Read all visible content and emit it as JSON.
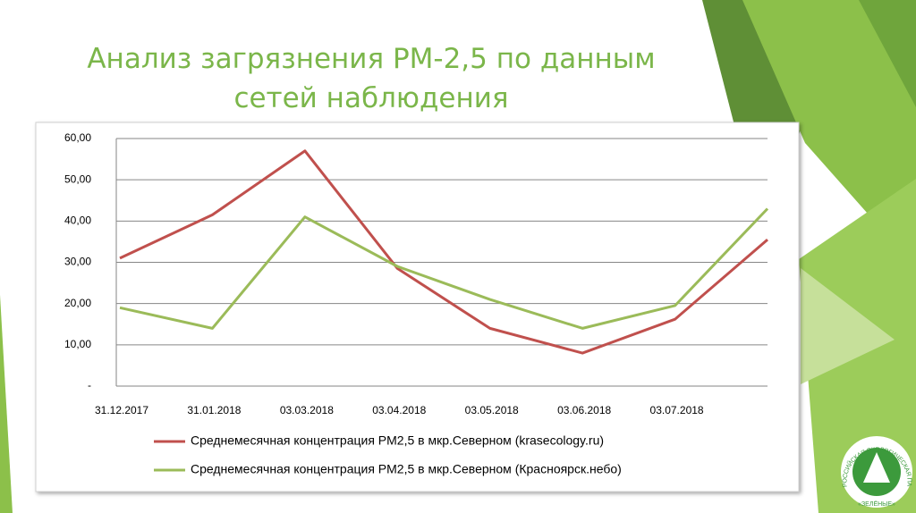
{
  "chart_data": {
    "type": "line",
    "title": "Анализ загрязнения PM-2,5 по данным сетей наблюдения",
    "categories": [
      "31.12.2017",
      "31.01.2018",
      "03.03.2018",
      "03.04.2018",
      "03.05.2018",
      "03.06.2018",
      "03.07.2018",
      null
    ],
    "series": [
      {
        "name": "Среднемесячная концентрация PM2,5 в мкр.Северном (krasecology.ru)",
        "color": "#c0504d",
        "values": [
          31,
          41.5,
          57,
          28.5,
          14,
          8,
          16.2,
          35.5
        ]
      },
      {
        "name": "Среднемесячная концентрация PM2,5 в мкр.Северном (Красноярск.небо)",
        "color": "#9bbb59",
        "values": [
          19,
          14,
          41,
          29,
          21,
          14,
          19.5,
          43
        ]
      }
    ],
    "ylim": [
      0,
      60
    ],
    "yticks": [
      {
        "value": 0,
        "label": "-"
      },
      {
        "value": 10,
        "label": "10,00"
      },
      {
        "value": 20,
        "label": "20,00"
      },
      {
        "value": 30,
        "label": "30,00"
      },
      {
        "value": 40,
        "label": "40,00"
      },
      {
        "value": 50,
        "label": "50,00"
      },
      {
        "value": 60,
        "label": "60,00"
      }
    ],
    "grid": true,
    "legend": "bottom"
  },
  "logo": {
    "arc": "РОССИЙСКАЯ ЭКОЛОГИЧЕСКАЯ ПАРТИЯ",
    "name": "«ЗЕЛЁНЫЕ»"
  }
}
